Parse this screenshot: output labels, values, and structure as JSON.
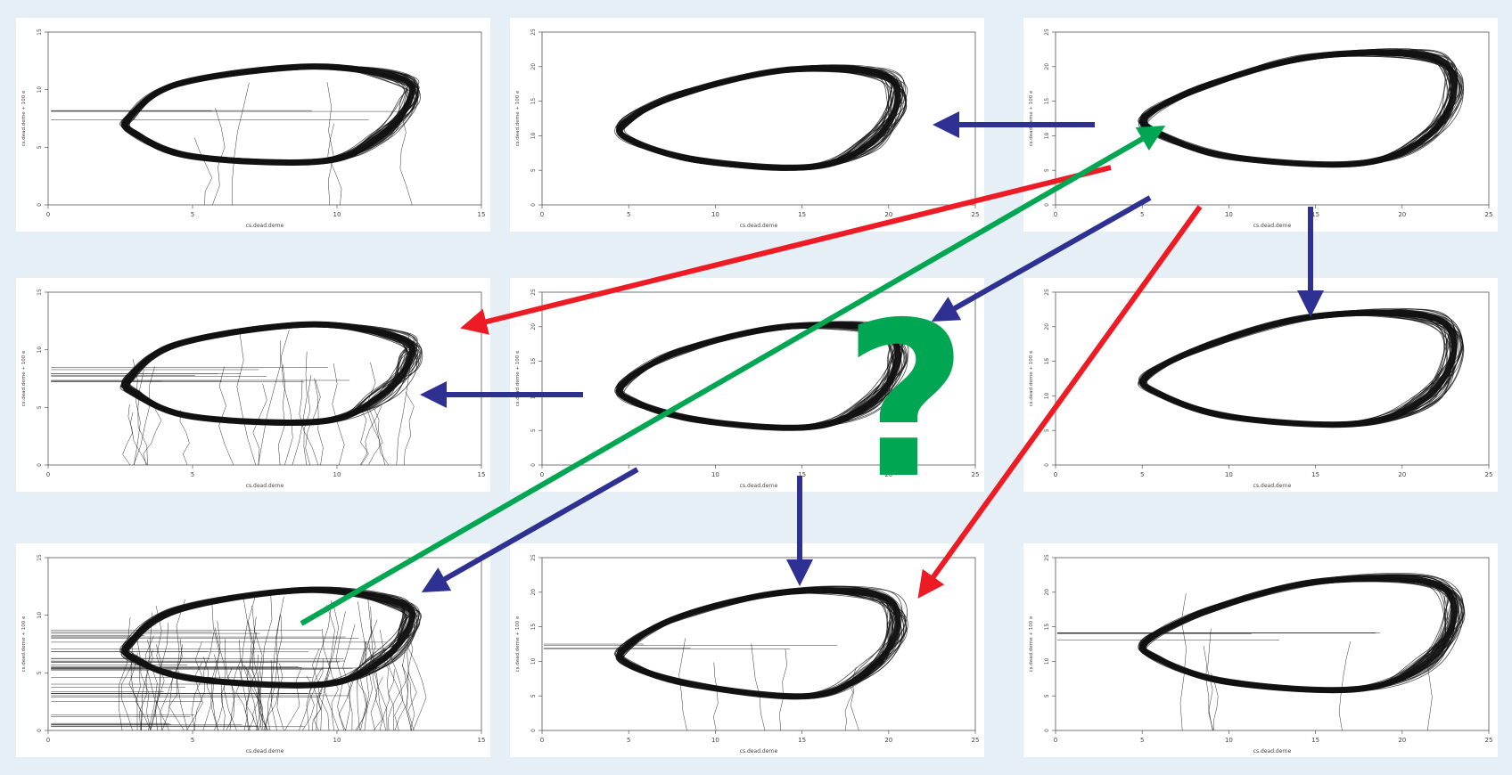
{
  "colors": {
    "background": "#e6eff6",
    "panel": "#ffffff",
    "trace": "#111111",
    "arrow_blue": "#2e3192",
    "arrow_red": "#ed1c24",
    "arrow_green": "#00a651",
    "question_mark": "#00a651"
  },
  "question_mark": "?",
  "chart_data": [
    {
      "type": "line",
      "xlabel": "cs.dead.derne",
      "ylabel": "cs.dead.derne + 100 e",
      "x_ticks": [
        "0",
        "5",
        "10",
        "15"
      ],
      "y_ticks": [
        "0",
        "5",
        "10",
        "15"
      ],
      "xlim": [
        0,
        15
      ],
      "ylim": [
        0,
        15
      ],
      "loop": {
        "x": [
          2.8,
          4.5,
          9.0,
          12.2,
          12.5,
          11.5,
          9.5,
          5.0,
          3.0
        ],
        "y": [
          7.5,
          10.5,
          12.0,
          11.0,
          9.0,
          6.0,
          3.8,
          4.2,
          6.2
        ]
      },
      "artifacts": "moderate"
    },
    {
      "type": "line",
      "xlabel": "cs.dead.derne",
      "ylabel": "cs.dead.derne + 100 e",
      "x_ticks": [
        "0",
        "5",
        "10",
        "15",
        "20",
        "25"
      ],
      "y_ticks": [
        "0",
        "5",
        "10",
        "15",
        "20",
        "25"
      ],
      "xlim": [
        0,
        25
      ],
      "ylim": [
        0,
        25
      ],
      "loop": {
        "x": [
          4.8,
          8.0,
          14.0,
          19.5,
          20.5,
          19.0,
          15.5,
          9.0,
          5.0
        ],
        "y": [
          12.0,
          16.0,
          19.5,
          19.0,
          15.0,
          9.0,
          5.5,
          6.5,
          9.5
        ]
      },
      "artifacts": "none"
    },
    {
      "type": "line",
      "xlabel": "cs.dead.derne",
      "ylabel": "cs.dead.derne + 100 e",
      "x_ticks": [
        "0",
        "5",
        "10",
        "15",
        "20",
        "25"
      ],
      "y_ticks": [
        "0",
        "5",
        "10",
        "15",
        "20",
        "25"
      ],
      "xlim": [
        0,
        25
      ],
      "ylim": [
        0,
        25
      ],
      "loop": {
        "x": [
          5.3,
          9.0,
          15.0,
          21.5,
          23.0,
          21.5,
          17.5,
          10.0,
          5.8
        ],
        "y": [
          13.0,
          17.5,
          21.5,
          21.5,
          17.0,
          10.0,
          6.0,
          7.0,
          10.5
        ]
      },
      "artifacts": "none"
    },
    {
      "type": "line",
      "xlabel": "cs.dead.derne",
      "ylabel": "cs.dead.derne + 100 e",
      "x_ticks": [
        "0",
        "5",
        "10",
        "15"
      ],
      "y_ticks": [
        "0",
        "5",
        "10",
        "15"
      ],
      "xlim": [
        0,
        15
      ],
      "ylim": [
        0,
        15
      ],
      "loop": {
        "x": [
          2.8,
          4.5,
          9.0,
          12.2,
          12.5,
          11.5,
          9.5,
          5.0,
          3.0
        ],
        "y": [
          7.5,
          10.5,
          12.2,
          11.0,
          9.0,
          6.0,
          3.8,
          4.2,
          6.2
        ]
      },
      "artifacts": "heavy"
    },
    {
      "type": "line",
      "xlabel": "cs.dead.derne",
      "ylabel": "cs.dead.derne + 100 e",
      "x_ticks": [
        "0",
        "5",
        "10",
        "15",
        "20",
        "25"
      ],
      "y_ticks": [
        "0",
        "5",
        "10",
        "15",
        "20",
        "25"
      ],
      "xlim": [
        0,
        25
      ],
      "ylim": [
        0,
        25
      ],
      "loop": {
        "x": [
          4.8,
          8.0,
          14.0,
          19.5,
          20.5,
          19.0,
          15.5,
          9.0,
          5.0
        ],
        "y": [
          12.0,
          16.5,
          20.0,
          19.5,
          15.0,
          9.0,
          5.5,
          6.5,
          9.5
        ]
      },
      "artifacts": "none"
    },
    {
      "type": "line",
      "xlabel": "cs.dead.derne",
      "ylabel": "cs.dead.derne + 100 e",
      "x_ticks": [
        "0",
        "5",
        "10",
        "15",
        "20",
        "25"
      ],
      "y_ticks": [
        "0",
        "5",
        "10",
        "15",
        "20",
        "25"
      ],
      "xlim": [
        0,
        25
      ],
      "ylim": [
        0,
        25
      ],
      "loop": {
        "x": [
          5.3,
          9.0,
          15.0,
          21.5,
          23.0,
          21.5,
          17.5,
          10.0,
          5.8
        ],
        "y": [
          13.0,
          17.5,
          21.5,
          21.5,
          17.0,
          10.0,
          6.0,
          7.0,
          10.5
        ]
      },
      "artifacts": "none"
    },
    {
      "type": "line",
      "xlabel": "cs.dead.derne",
      "ylabel": "cs.dead.derne + 100 e",
      "x_ticks": [
        "0",
        "5",
        "10",
        "15"
      ],
      "y_ticks": [
        "0",
        "5",
        "10",
        "15"
      ],
      "xlim": [
        0,
        15
      ],
      "ylim": [
        0,
        15
      ],
      "loop": {
        "x": [
          2.8,
          4.5,
          9.0,
          12.2,
          12.5,
          11.5,
          9.5,
          5.0,
          3.0
        ],
        "y": [
          7.5,
          10.5,
          12.2,
          11.0,
          9.0,
          6.0,
          4.0,
          4.5,
          6.2
        ]
      },
      "artifacts": "extreme"
    },
    {
      "type": "line",
      "xlabel": "cs.dead.derne",
      "ylabel": "cs.dead.derne + 100 e",
      "x_ticks": [
        "0",
        "5",
        "10",
        "15",
        "20",
        "25"
      ],
      "y_ticks": [
        "0",
        "5",
        "10",
        "15",
        "20",
        "25"
      ],
      "xlim": [
        0,
        25
      ],
      "ylim": [
        0,
        25
      ],
      "loop": {
        "x": [
          4.8,
          8.0,
          14.0,
          19.5,
          20.5,
          19.0,
          15.5,
          9.0,
          5.0
        ],
        "y": [
          12.0,
          16.5,
          20.0,
          19.5,
          15.0,
          9.0,
          5.0,
          6.5,
          9.5
        ]
      },
      "artifacts": "moderate"
    },
    {
      "type": "line",
      "xlabel": "cs.dead.derne",
      "ylabel": "cs.dead.derne + 100 e",
      "x_ticks": [
        "0",
        "5",
        "10",
        "15",
        "20",
        "25"
      ],
      "y_ticks": [
        "0",
        "5",
        "10",
        "15",
        "20",
        "25"
      ],
      "xlim": [
        0,
        25
      ],
      "ylim": [
        0,
        25
      ],
      "loop": {
        "x": [
          5.3,
          9.0,
          15.0,
          21.5,
          23.0,
          21.5,
          17.5,
          10.0,
          5.8
        ],
        "y": [
          13.0,
          17.5,
          21.5,
          21.5,
          17.0,
          10.0,
          6.0,
          7.0,
          10.5
        ]
      },
      "artifacts": "moderate"
    }
  ],
  "arrows": [
    {
      "from": "panel-3",
      "to": "panel-2",
      "color": "blue"
    },
    {
      "from": "panel-3",
      "to": "panel-6",
      "color": "blue"
    },
    {
      "from": "panel-3",
      "to": "panel-5",
      "color": "blue"
    },
    {
      "from": "panel-5",
      "to": "panel-4",
      "color": "blue"
    },
    {
      "from": "panel-5",
      "to": "panel-8",
      "color": "blue"
    },
    {
      "from": "panel-5",
      "to": "panel-7",
      "color": "blue"
    },
    {
      "from": "panel-3",
      "to": "panel-4",
      "color": "red"
    },
    {
      "from": "panel-3",
      "to": "panel-8",
      "color": "red"
    },
    {
      "from": "panel-7",
      "to": "panel-3",
      "color": "green"
    }
  ]
}
